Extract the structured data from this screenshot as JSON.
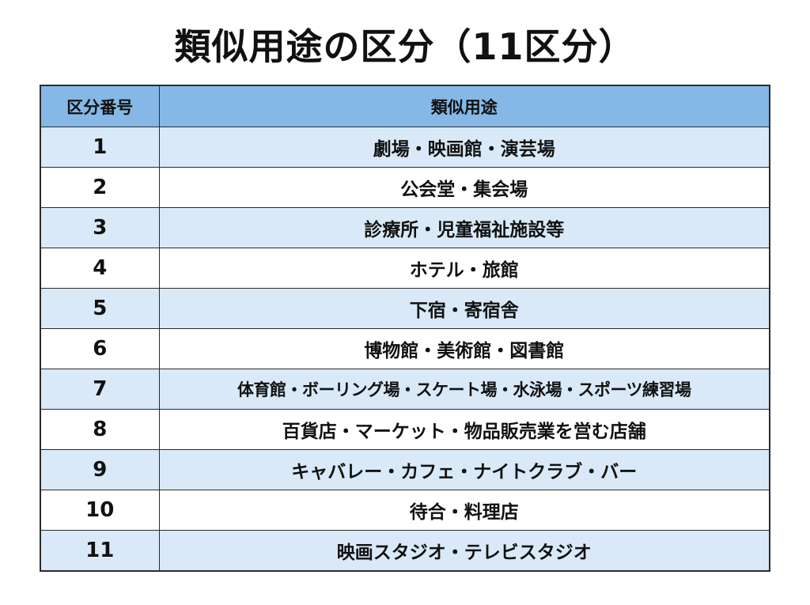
{
  "title": "類似用途の区分（11区分）",
  "table": {
    "headers": {
      "number": "区分番号",
      "usage": "類似用途"
    },
    "rows": [
      {
        "number": "1",
        "usage": "劇場・映画館・演芸場"
      },
      {
        "number": "2",
        "usage": "公会堂・集会場"
      },
      {
        "number": "3",
        "usage": "診療所・児童福祉施設等"
      },
      {
        "number": "4",
        "usage": "ホテル・旅館"
      },
      {
        "number": "5",
        "usage": "下宿・寄宿舎"
      },
      {
        "number": "6",
        "usage": "博物館・美術館・図書館"
      },
      {
        "number": "7",
        "usage": "体育館・ボーリング場・スケート場・水泳場・スポーツ練習場"
      },
      {
        "number": "8",
        "usage": "百貨店・マーケット・物品販売業を営む店舗"
      },
      {
        "number": "9",
        "usage": "キャバレー・カフェ・ナイトクラブ・バー"
      },
      {
        "number": "10",
        "usage": "待合・料理店"
      },
      {
        "number": "11",
        "usage": "映画スタジオ・テレビスタジオ"
      }
    ]
  },
  "colors": {
    "header_background": "#85b8e6",
    "stripe_background": "#d9e9f8",
    "plain_background": "#ffffff",
    "border": "#2b2b2b"
  }
}
